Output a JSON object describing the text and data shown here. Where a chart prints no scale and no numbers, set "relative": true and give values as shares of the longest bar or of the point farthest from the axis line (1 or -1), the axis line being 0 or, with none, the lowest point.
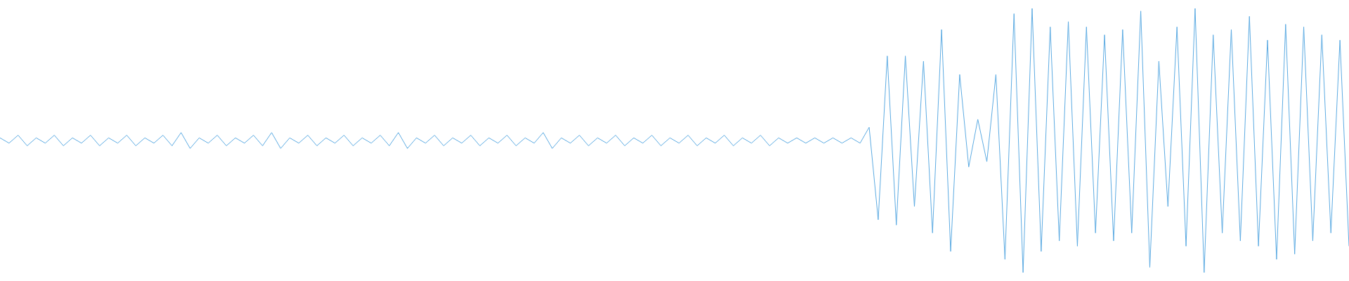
{
  "chart_data": {
    "type": "line",
    "relative": true,
    "categories": [
      null,
      null,
      null,
      null,
      null,
      null,
      null,
      null,
      null,
      null,
      null,
      null,
      null,
      null,
      null,
      null,
      null,
      null,
      null,
      null,
      null,
      null,
      null,
      null,
      null,
      null,
      null,
      null,
      null,
      null,
      null,
      null,
      null,
      null,
      null,
      null,
      null,
      null,
      null,
      null,
      null,
      null,
      null,
      null,
      null,
      null,
      null,
      null,
      null,
      null,
      null,
      null,
      null,
      null,
      null,
      null,
      null,
      null,
      null,
      null,
      null,
      null,
      null,
      null,
      null,
      null,
      null,
      null,
      null,
      null,
      null,
      null,
      null,
      null,
      null,
      null,
      null,
      null,
      null,
      null,
      null,
      null,
      null,
      null,
      null,
      null,
      null,
      null,
      null,
      null,
      null,
      null,
      null,
      null,
      null,
      null,
      null,
      null,
      null,
      null,
      null,
      null,
      null,
      null,
      null,
      null,
      null,
      null,
      null,
      null,
      null,
      null,
      null,
      null,
      null,
      null,
      null,
      null,
      null,
      null,
      null,
      null,
      null,
      null,
      null,
      null,
      null,
      null,
      null,
      null,
      null,
      null,
      null,
      null,
      null,
      null,
      null,
      null,
      null,
      null,
      null,
      null,
      null,
      null,
      null,
      null,
      null,
      null,
      null,
      null
    ],
    "series": [
      {
        "color": "#5dabe2",
        "values": [
          0.51,
          0.49,
          0.52,
          0.48,
          0.51,
          0.49,
          0.52,
          0.48,
          0.51,
          0.49,
          0.52,
          0.48,
          0.51,
          0.49,
          0.52,
          0.48,
          0.51,
          0.49,
          0.52,
          0.48,
          0.53,
          0.47,
          0.51,
          0.49,
          0.52,
          0.48,
          0.51,
          0.49,
          0.52,
          0.48,
          0.53,
          0.47,
          0.51,
          0.49,
          0.52,
          0.48,
          0.51,
          0.49,
          0.52,
          0.48,
          0.51,
          0.49,
          0.52,
          0.48,
          0.53,
          0.47,
          0.51,
          0.49,
          0.52,
          0.48,
          0.51,
          0.49,
          0.52,
          0.48,
          0.51,
          0.49,
          0.52,
          0.48,
          0.51,
          0.49,
          0.53,
          0.47,
          0.51,
          0.49,
          0.52,
          0.48,
          0.51,
          0.49,
          0.52,
          0.48,
          0.51,
          0.49,
          0.52,
          0.48,
          0.51,
          0.49,
          0.52,
          0.48,
          0.51,
          0.49,
          0.52,
          0.48,
          0.51,
          0.49,
          0.52,
          0.48,
          0.51,
          0.49,
          0.51,
          0.49,
          0.51,
          0.49,
          0.51,
          0.49,
          0.51,
          0.49,
          0.55,
          0.2,
          0.82,
          0.18,
          0.82,
          0.25,
          0.8,
          0.15,
          0.92,
          0.08,
          0.75,
          0.4,
          0.58,
          0.42,
          0.75,
          0.05,
          0.98,
          0.0,
          1.0,
          0.08,
          0.93,
          0.12,
          0.95,
          0.1,
          0.93,
          0.15,
          0.9,
          0.12,
          0.92,
          0.15,
          0.99,
          0.02,
          0.8,
          0.25,
          0.93,
          0.1,
          1.0,
          0.0,
          0.9,
          0.15,
          0.92,
          0.12,
          0.97,
          0.1,
          0.88,
          0.05,
          0.94,
          0.07,
          0.93,
          0.12,
          0.9,
          0.15,
          0.88,
          0.1
        ]
      }
    ]
  }
}
